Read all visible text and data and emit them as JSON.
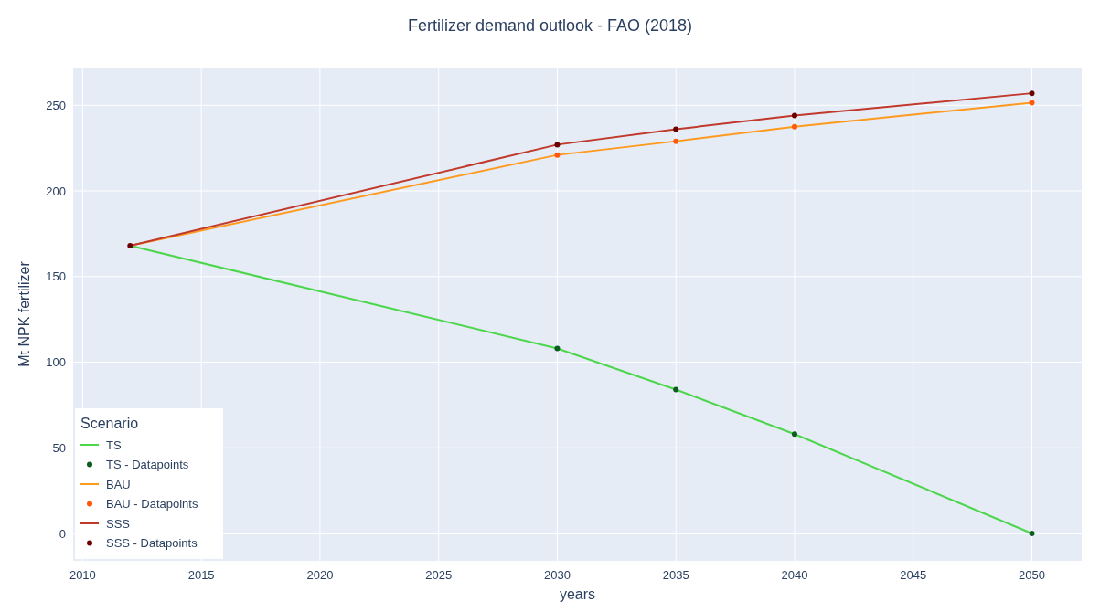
{
  "chart_data": {
    "type": "line",
    "title": "Fertilizer demand outlook - FAO (2018)",
    "xlabel": "years",
    "ylabel": "Mt NPK fertilizer",
    "legend_title": "Scenario",
    "legend": "bottom left",
    "grid": true,
    "xlim": [
      2009.6,
      2052.1
    ],
    "ylim": [
      -16,
      272
    ],
    "xticks": [
      2010,
      2015,
      2020,
      2025,
      2030,
      2035,
      2040,
      2045,
      2050
    ],
    "yticks": [
      0,
      50,
      100,
      150,
      200,
      250
    ],
    "series": [
      {
        "name": "TS",
        "color": "#4cd64c",
        "x": [
          2012,
          2030,
          2035,
          2040,
          2050
        ],
        "values": [
          168,
          108,
          84,
          58,
          0
        ]
      },
      {
        "name": "TS - Datapoints",
        "type": "scatter",
        "color": "#0b5d1e",
        "x": [
          2030,
          2035,
          2040,
          2050
        ],
        "values": [
          108,
          84,
          58,
          0
        ]
      },
      {
        "name": "BAU",
        "color": "#ff9a1f",
        "x": [
          2012,
          2030,
          2035,
          2040,
          2050
        ],
        "values": [
          168,
          221,
          229,
          237.5,
          251.5
        ]
      },
      {
        "name": "BAU - Datapoints",
        "type": "scatter",
        "color": "#ff5a0a",
        "x": [
          2030,
          2035,
          2040,
          2050
        ],
        "values": [
          221,
          229,
          237.5,
          251.5
        ]
      },
      {
        "name": "SSS",
        "color": "#c0392b",
        "x": [
          2012,
          2030,
          2035,
          2040,
          2050
        ],
        "values": [
          168,
          227,
          236,
          244,
          257
        ]
      },
      {
        "name": "SSS - Datapoints",
        "type": "scatter",
        "color": "#6b0000",
        "x": [
          2012,
          2030,
          2035,
          2040,
          2050
        ],
        "values": [
          168,
          227,
          236,
          244,
          257
        ]
      }
    ]
  }
}
